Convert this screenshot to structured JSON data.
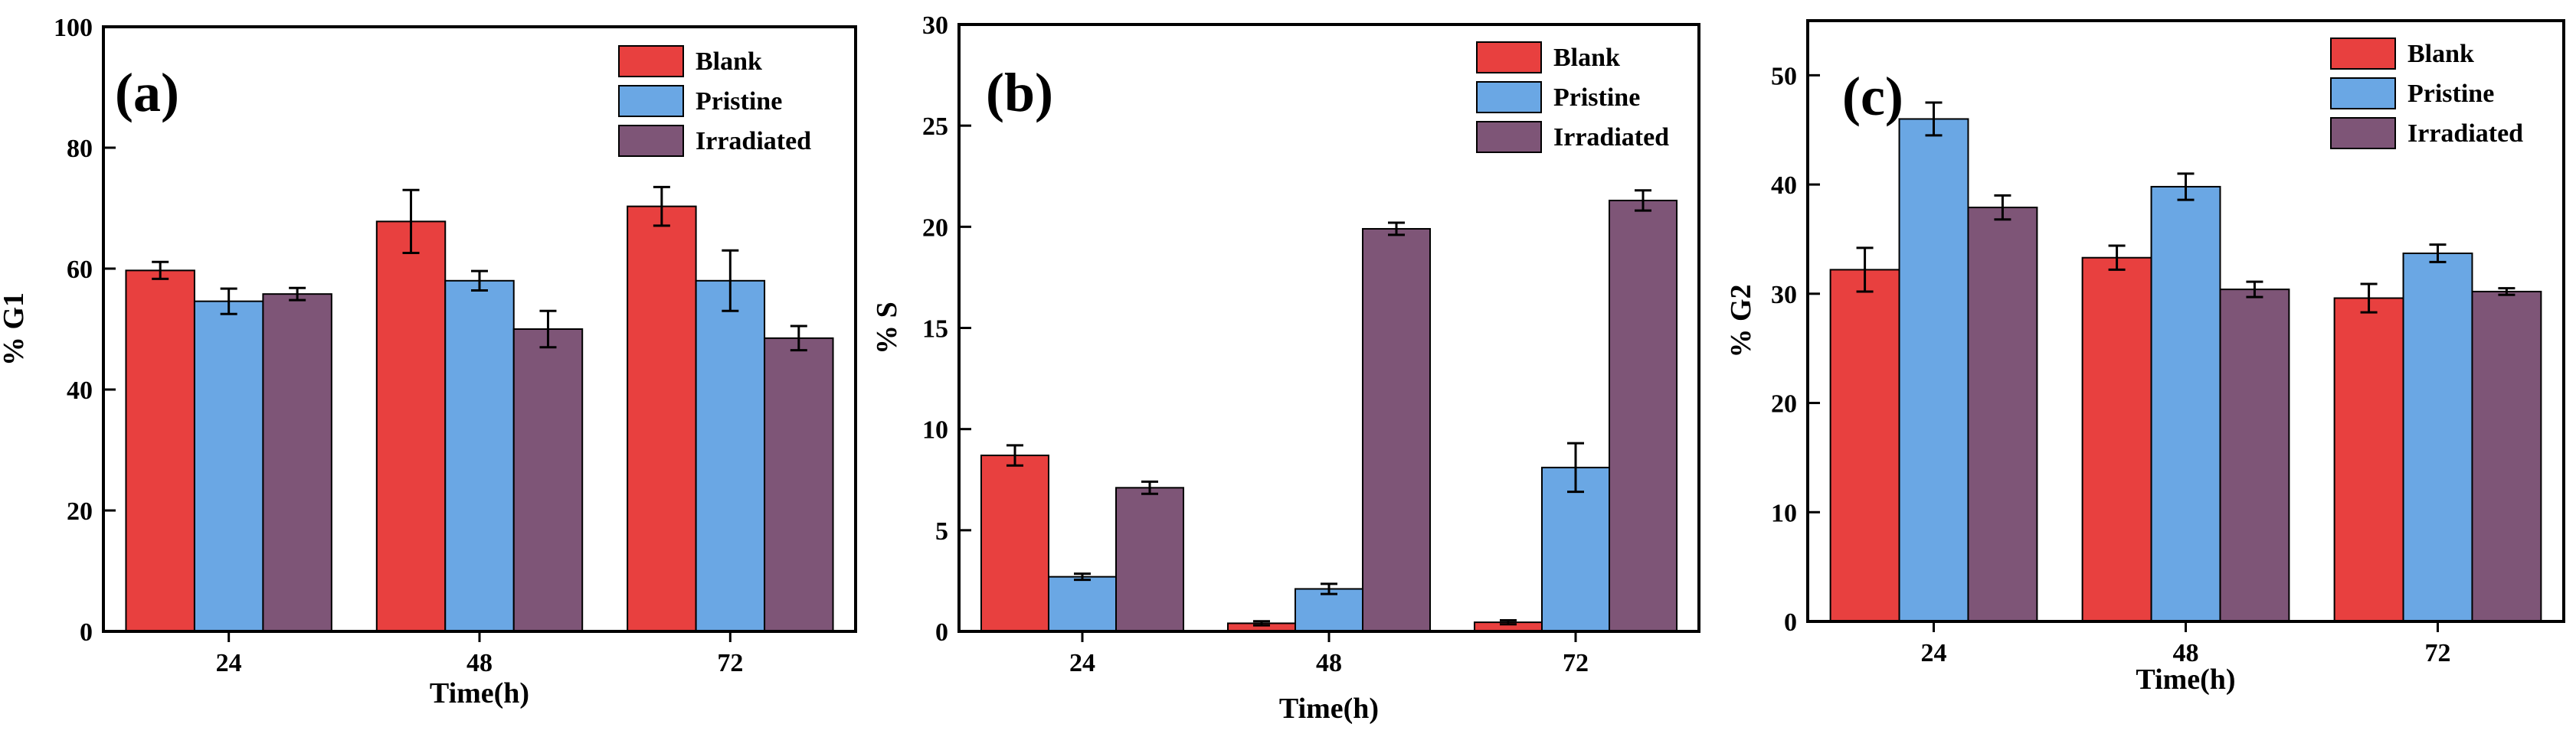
{
  "colors": {
    "Blank": "#E8403F",
    "Pristine": "#6AA7E4",
    "Irradiated": "#7E5577",
    "axis": "#000000"
  },
  "legend": [
    "Blank",
    "Pristine",
    "Irradiated"
  ],
  "chart_data": [
    {
      "type": "bar",
      "panel_label": "(a)",
      "xlabel": "Time(h)",
      "ylabel": "% G1",
      "categories": [
        "24",
        "48",
        "72"
      ],
      "ylim": [
        0,
        100
      ],
      "yticks": [
        0,
        20,
        40,
        60,
        80,
        100
      ],
      "series": [
        {
          "name": "Blank",
          "values": [
            59.7,
            67.8,
            70.3
          ],
          "errors": [
            1.4,
            5.2,
            3.2
          ]
        },
        {
          "name": "Pristine",
          "values": [
            54.6,
            58.0,
            58.0
          ],
          "errors": [
            2.1,
            1.6,
            5.0
          ]
        },
        {
          "name": "Irradiated",
          "values": [
            55.8,
            50.0,
            48.5
          ],
          "errors": [
            1.0,
            3.0,
            2.0
          ]
        }
      ]
    },
    {
      "type": "bar",
      "panel_label": "(b)",
      "xlabel": "Time(h)",
      "ylabel": "% S",
      "categories": [
        "24",
        "48",
        "72"
      ],
      "ylim": [
        0,
        30
      ],
      "yticks": [
        0,
        5,
        10,
        15,
        20,
        25,
        30
      ],
      "series": [
        {
          "name": "Blank",
          "values": [
            8.7,
            0.4,
            0.45
          ],
          "errors": [
            0.5,
            0.1,
            0.1
          ]
        },
        {
          "name": "Pristine",
          "values": [
            2.7,
            2.1,
            8.1
          ],
          "errors": [
            0.15,
            0.25,
            1.2
          ]
        },
        {
          "name": "Irradiated",
          "values": [
            7.1,
            19.9,
            21.3
          ],
          "errors": [
            0.3,
            0.3,
            0.5
          ]
        }
      ]
    },
    {
      "type": "bar",
      "panel_label": "(c)",
      "xlabel": "Time(h)",
      "ylabel": "% G2",
      "categories": [
        "24",
        "48",
        "72"
      ],
      "ylim": [
        0,
        55
      ],
      "yticks": [
        0,
        10,
        20,
        30,
        40,
        50
      ],
      "series": [
        {
          "name": "Blank",
          "values": [
            32.2,
            33.3,
            29.6
          ],
          "errors": [
            2.0,
            1.1,
            1.3
          ]
        },
        {
          "name": "Pristine",
          "values": [
            46.0,
            39.8,
            33.7
          ],
          "errors": [
            1.5,
            1.2,
            0.8
          ]
        },
        {
          "name": "Irradiated",
          "values": [
            37.9,
            30.4,
            30.2
          ],
          "errors": [
            1.1,
            0.7,
            0.3
          ]
        }
      ]
    }
  ]
}
